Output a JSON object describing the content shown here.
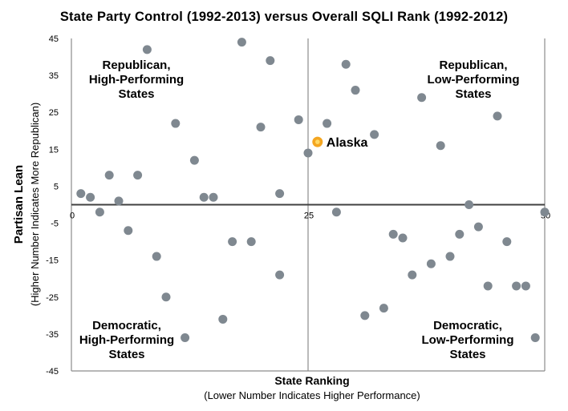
{
  "chart_data": {
    "type": "scatter",
    "title": "State Party Control (1992-2013) versus Overall SQLI Rank (1992-2012)",
    "xlabel": "State Ranking",
    "xlabel_sub": "(Lower Number Indicates Higher Performance)",
    "ylabel": "Partisan Lean",
    "ylabel_sub": "(Higher Number Indicates More Republican)",
    "xlim": [
      0,
      50
    ],
    "ylim": [
      -45,
      45
    ],
    "x_ticks": [
      "0",
      "25",
      "50"
    ],
    "y_ticks": [
      "45",
      "35",
      "25",
      "15",
      "5",
      "-5",
      "-15",
      "-25",
      "-35",
      "-45"
    ],
    "grid": true,
    "point_color": "#7f8890",
    "highlight_color": "#f4a621",
    "highlight_center_color": "#ffd966",
    "quadrant_labels": {
      "top_left": [
        "Republican,",
        "High-Performing",
        "States"
      ],
      "top_right": [
        "Republican,",
        "Low-Performing",
        "States"
      ],
      "bottom_left": [
        "Democratic,",
        "High-Performing",
        "States"
      ],
      "bottom_right": [
        "Democratic,",
        "Low-Performing",
        "States"
      ]
    },
    "highlight": {
      "label": "Alaska",
      "x": 26,
      "y": 17
    },
    "points": [
      {
        "x": 1,
        "y": 3
      },
      {
        "x": 2,
        "y": 2
      },
      {
        "x": 3,
        "y": -2
      },
      {
        "x": 4,
        "y": 8
      },
      {
        "x": 5,
        "y": 1
      },
      {
        "x": 6,
        "y": -7
      },
      {
        "x": 7,
        "y": 8
      },
      {
        "x": 8,
        "y": 42
      },
      {
        "x": 9,
        "y": -14
      },
      {
        "x": 10,
        "y": -25
      },
      {
        "x": 11,
        "y": 22
      },
      {
        "x": 12,
        "y": -36
      },
      {
        "x": 13,
        "y": 12
      },
      {
        "x": 14,
        "y": 2
      },
      {
        "x": 15,
        "y": 2
      },
      {
        "x": 16,
        "y": -31
      },
      {
        "x": 17,
        "y": -10
      },
      {
        "x": 18,
        "y": 44
      },
      {
        "x": 19,
        "y": -10
      },
      {
        "x": 20,
        "y": 21
      },
      {
        "x": 21,
        "y": 39
      },
      {
        "x": 22,
        "y": -19
      },
      {
        "x": 22,
        "y": 3
      },
      {
        "x": 24,
        "y": 23
      },
      {
        "x": 25,
        "y": 14
      },
      {
        "x": 27,
        "y": 22
      },
      {
        "x": 28,
        "y": -2
      },
      {
        "x": 29,
        "y": 38
      },
      {
        "x": 30,
        "y": 31
      },
      {
        "x": 31,
        "y": -30
      },
      {
        "x": 32,
        "y": 19
      },
      {
        "x": 33,
        "y": -28
      },
      {
        "x": 34,
        "y": -8
      },
      {
        "x": 35,
        "y": -9
      },
      {
        "x": 36,
        "y": -19
      },
      {
        "x": 37,
        "y": 29
      },
      {
        "x": 38,
        "y": -16
      },
      {
        "x": 39,
        "y": 16
      },
      {
        "x": 40,
        "y": -14
      },
      {
        "x": 41,
        "y": -8
      },
      {
        "x": 42,
        "y": 0
      },
      {
        "x": 43,
        "y": -6
      },
      {
        "x": 44,
        "y": -22
      },
      {
        "x": 45,
        "y": 24
      },
      {
        "x": 46,
        "y": -10
      },
      {
        "x": 47,
        "y": -22
      },
      {
        "x": 48,
        "y": -22
      },
      {
        "x": 49,
        "y": -36
      },
      {
        "x": 50,
        "y": -2
      }
    ]
  }
}
